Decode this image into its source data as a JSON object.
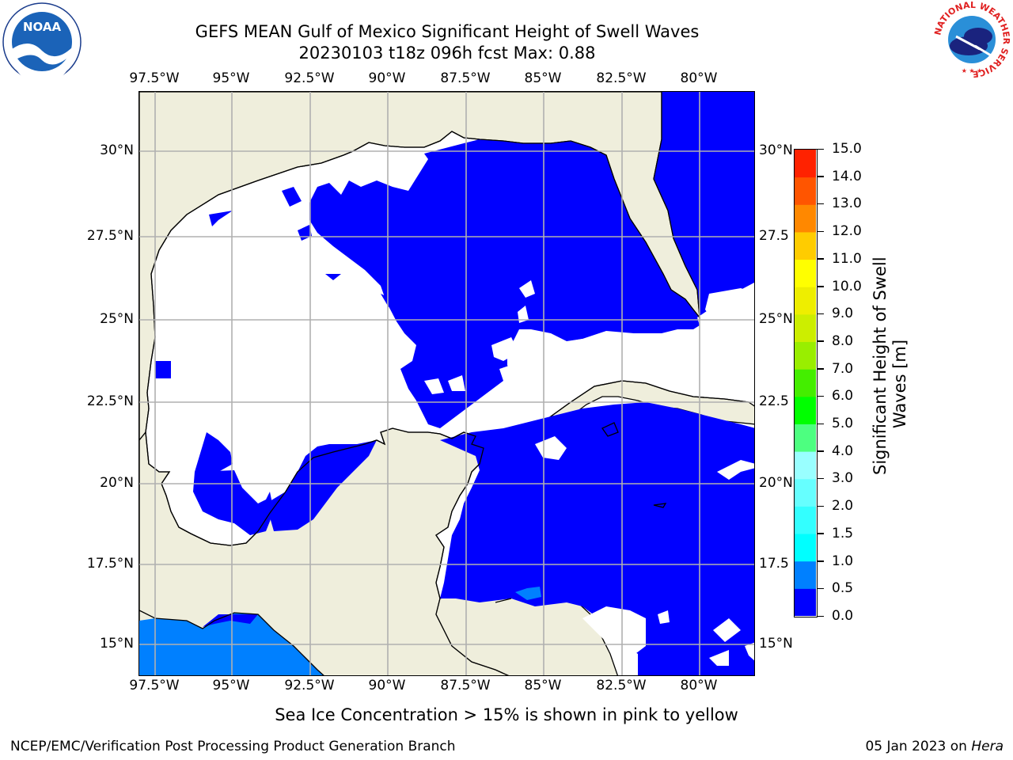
{
  "title": {
    "line1": "GEFS MEAN Gulf of Mexico Significant Height of Swell Waves",
    "line2": "20230103 t18z 096h fcst   Max: 0.88"
  },
  "logos": {
    "left": {
      "name": "NOAA",
      "ring_text": "NATIONAL OCEANIC AND ATMOSPHERIC ADMINISTRATION · U.S. DEPARTMENT OF COMMERCE"
    },
    "right": {
      "ring_text": "NATIONAL WEATHER SERVICE"
    }
  },
  "map": {
    "lon_ticks": [
      "97.5°W",
      "95°W",
      "92.5°W",
      "90°W",
      "87.5°W",
      "85°W",
      "82.5°W",
      "80°W"
    ],
    "lat_ticks": [
      "30°N",
      "27.5°N",
      "25°N",
      "22.5°N",
      "20°N",
      "17.5°N",
      "15°N"
    ],
    "lat_ticks_right": [
      "30°N",
      "27.5",
      "25°N",
      "22.5",
      "20°N",
      "17.5",
      "15°N"
    ],
    "lon_range": [
      -98,
      -78
    ],
    "lat_range": [
      14,
      31.7
    ],
    "grid": true,
    "colors": {
      "land": "#efeedc",
      "ocean_low": "#0000ff",
      "ocean_mid": "#0080ff",
      "no_data": "#ffffff",
      "coast": "#000000",
      "grid": "#b0b0b0"
    }
  },
  "colorbar": {
    "label": "Significant Height of Swell Waves [m]",
    "label_line1": "Significant Height of Swell",
    "label_line2": "Waves [m]",
    "ticks": [
      "0.0",
      "0.5",
      "1.0",
      "1.5",
      "2.0",
      "3.0",
      "4.0",
      "5.0",
      "6.0",
      "7.0",
      "8.0",
      "9.0",
      "10.0",
      "11.0",
      "12.0",
      "13.0",
      "14.0",
      "15.0"
    ],
    "colors": [
      "#0000ff",
      "#0080ff",
      "#00ffff",
      "#33ffff",
      "#66ffff",
      "#99ffff",
      "#4dff80",
      "#00ff00",
      "#44ee00",
      "#99ee00",
      "#ccee00",
      "#eeee00",
      "#ffff00",
      "#ffcc00",
      "#ff8800",
      "#ff5500",
      "#ff2200",
      "#ff0000"
    ]
  },
  "note": "Sea Ice Concentration > 15% is shown in pink to yellow",
  "footer": {
    "left": "NCEP/EMC/Verification Post Processing Product Generation Branch",
    "right_prefix": "05 Jan 2023 on ",
    "right_host": "Hera"
  }
}
